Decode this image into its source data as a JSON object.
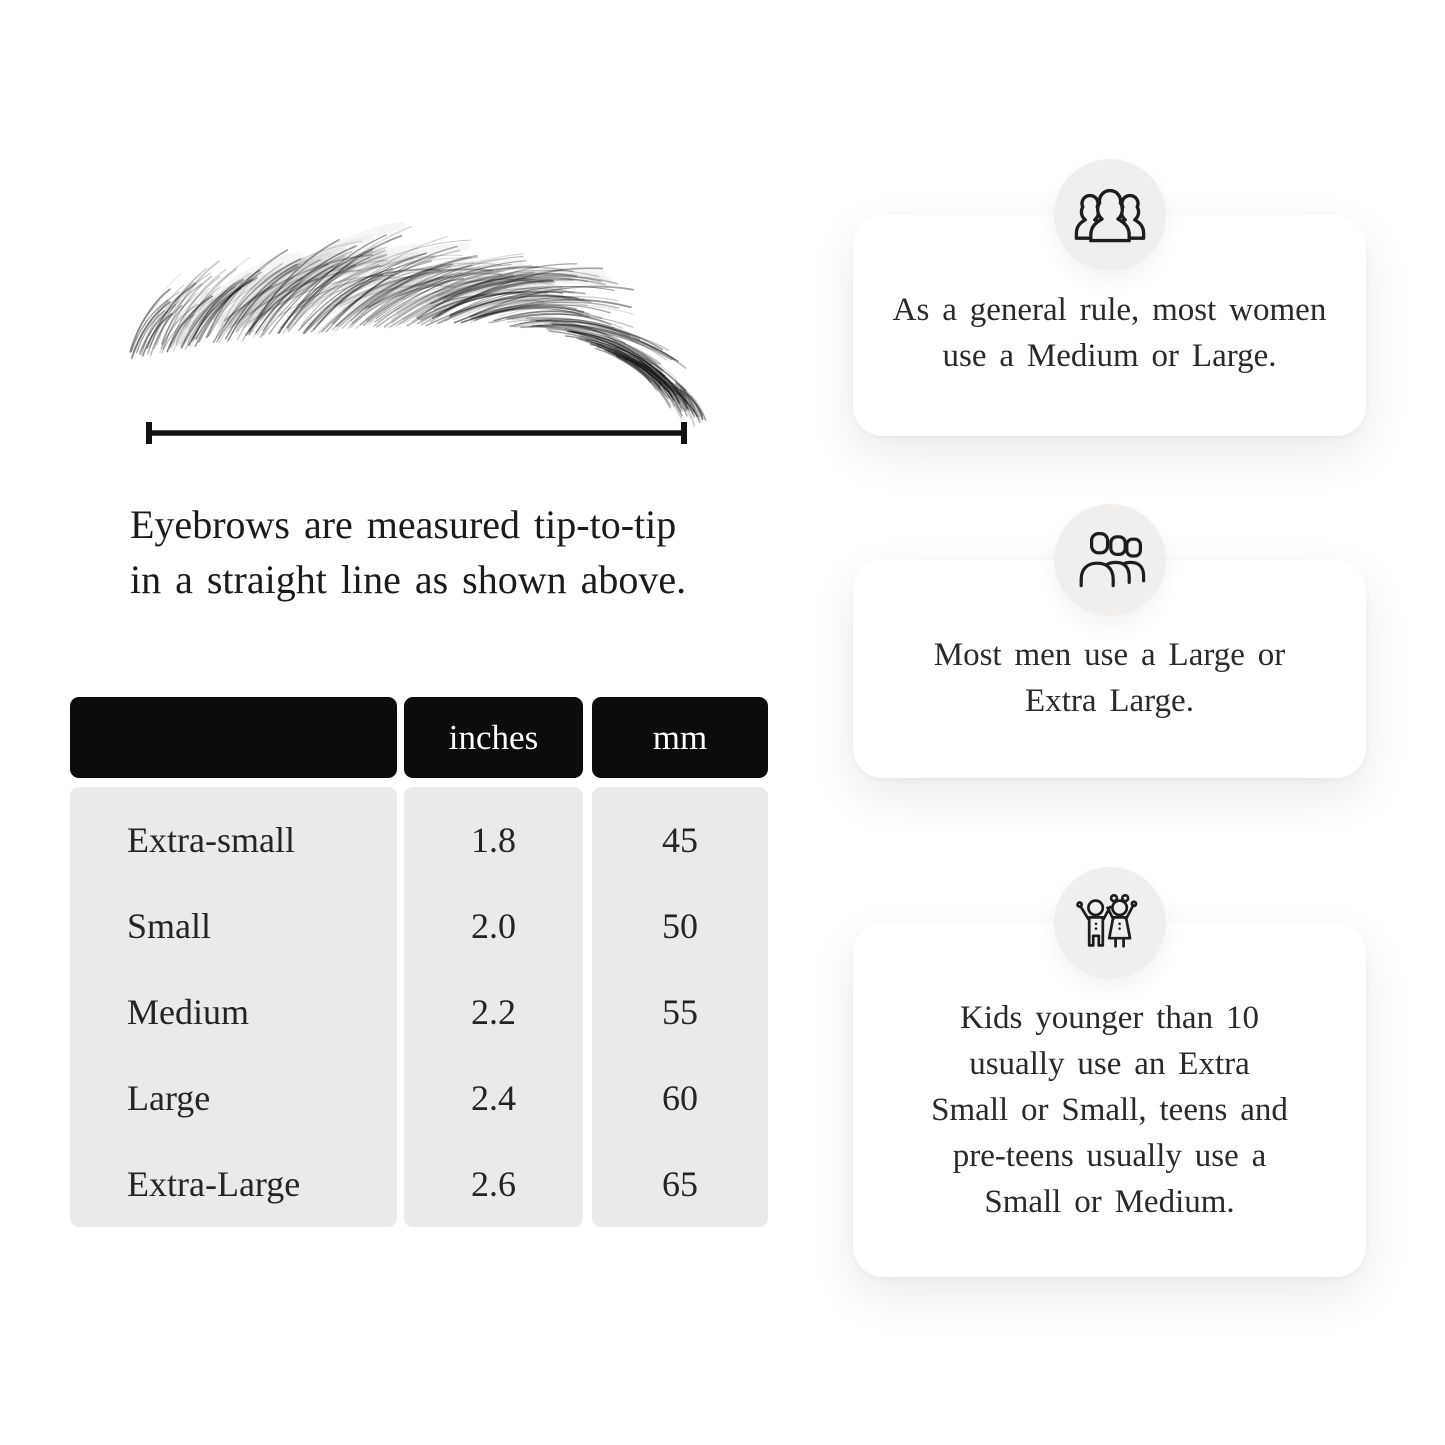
{
  "page": {
    "background": "#ffffff"
  },
  "measurement_note": {
    "lines": [
      "Eyebrows are measured tip-to-tip",
      "in a straight line as shown above."
    ]
  },
  "size_table": {
    "columns": [
      "",
      "inches",
      "mm"
    ],
    "rows": [
      {
        "label": "Extra-small",
        "inches": "1.8",
        "mm": "45"
      },
      {
        "label": "Small",
        "inches": "2.0",
        "mm": "50"
      },
      {
        "label": "Medium",
        "inches": "2.2",
        "mm": "55"
      },
      {
        "label": "Large",
        "inches": "2.4",
        "mm": "60"
      },
      {
        "label": "Extra-Large",
        "inches": "2.6",
        "mm": "65"
      }
    ],
    "colors": {
      "header_bg": "#0c0c0c",
      "header_text": "#ffffff",
      "body_bg": "#eaeae9",
      "body_text": "#242424"
    }
  },
  "cards": [
    {
      "icon": "women-group-icon",
      "lines": [
        "As a general rule, most women",
        "use a Medium or Large."
      ]
    },
    {
      "icon": "men-group-icon",
      "lines": [
        "Most men use a Large or",
        "Extra Large."
      ]
    },
    {
      "icon": "kids-icon",
      "lines": [
        "Kids younger than 10",
        "usually use an Extra",
        "Small or Small, teens and",
        "pre-teens usually use a",
        "Small or Medium."
      ]
    }
  ],
  "colors": {
    "card_bg": "#ffffff",
    "icon_circle_bg": "#f0efee",
    "line": "#111111",
    "text": "#242424"
  }
}
